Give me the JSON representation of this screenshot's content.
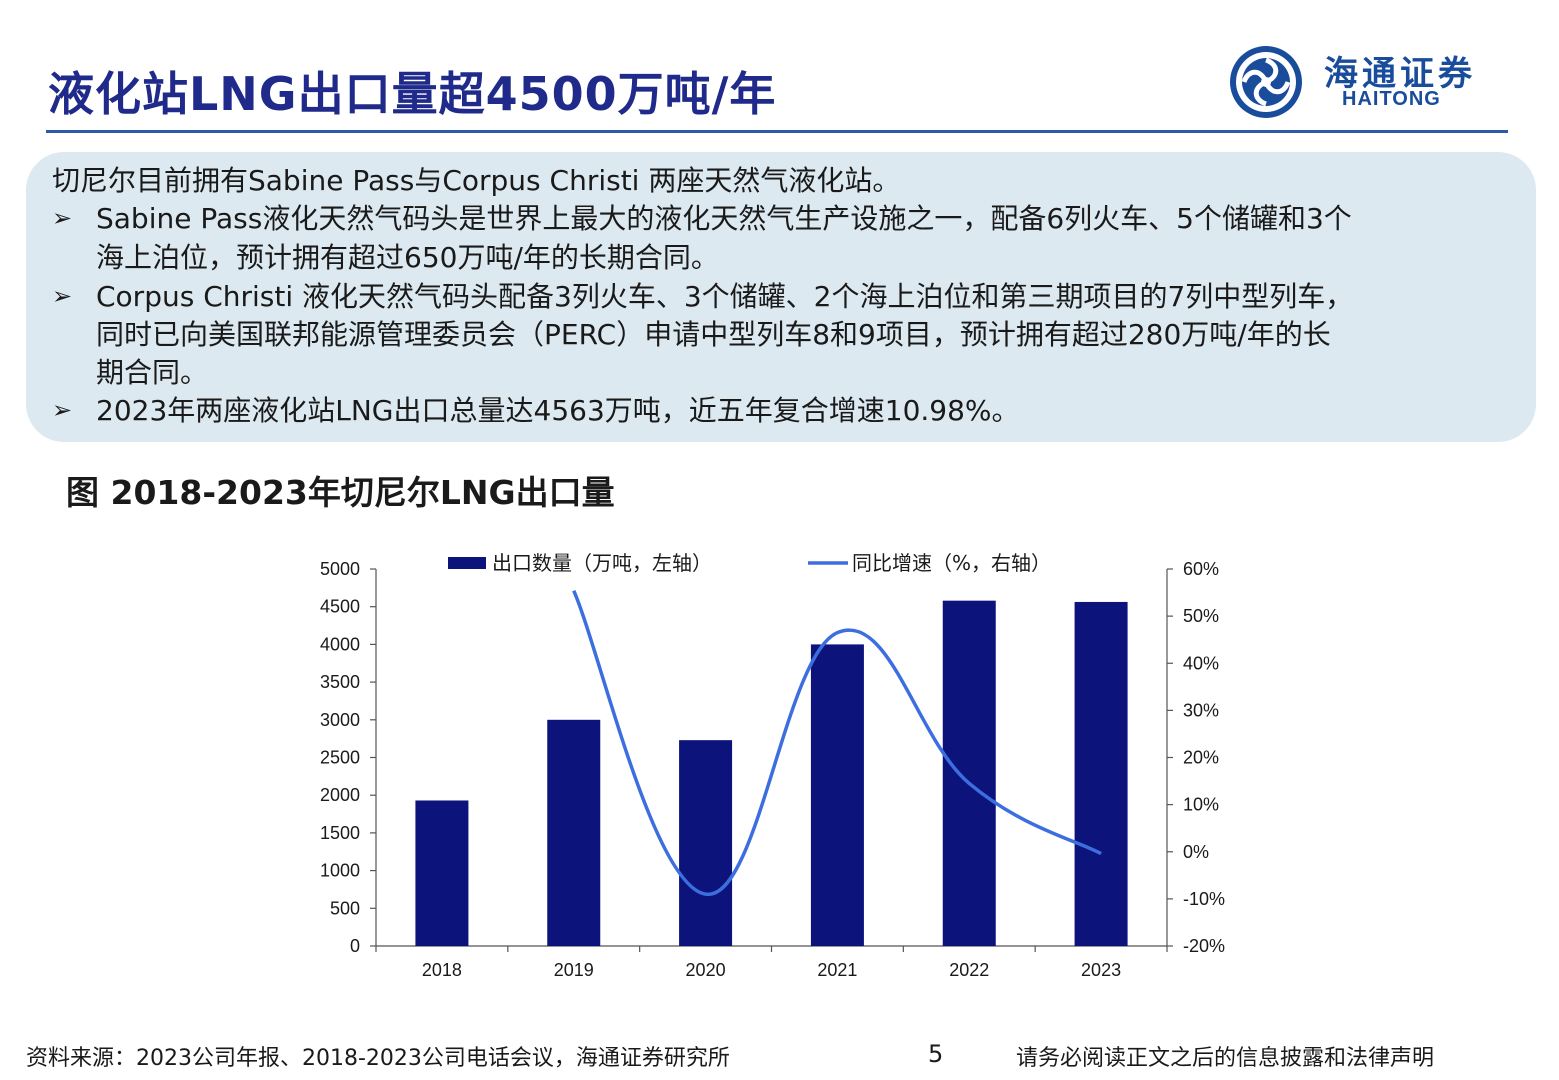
{
  "header": {
    "title": "液化站LNG出口量超4500万吨/年",
    "logo_cn": "海通证券",
    "logo_en": "HAITONG"
  },
  "summary": {
    "intro": "切尼尔目前拥有Sabine Pass与Corpus Christi 两座天然气液化站。",
    "bullet_symbol": "➢",
    "bullets": [
      {
        "line1": "Sabine Pass液化天然气码头是世界上最大的液化天然气生产设施之一，配备6列火车、5个储罐和3个",
        "line2": "海上泊位，预计拥有超过650万吨/年的长期合同。"
      },
      {
        "line1": "Corpus Christi 液化天然气码头配备3列火车、3个储罐、2个海上泊位和第三期项目的7列中型列车，",
        "line2": "同时已向美国联邦能源管理委员会（PERC）申请中型列车8和9项目，预计拥有超过280万吨/年的长",
        "line3": "期合同。"
      },
      {
        "line1": "2023年两座液化站LNG出口总量达4563万吨，近五年复合增速10.98%。"
      }
    ]
  },
  "figure": {
    "title": "图 2018-2023年切尼尔LNG出口量"
  },
  "chart_data": {
    "type": "bar",
    "categories": [
      "2018",
      "2019",
      "2020",
      "2021",
      "2022",
      "2023"
    ],
    "series": [
      {
        "name": "出口数量（万吨，左轴）",
        "type": "bar",
        "axis": "left",
        "color": "#0c137a",
        "values": [
          1930,
          3000,
          2730,
          4000,
          4580,
          4563
        ]
      },
      {
        "name": "同比增速（%，右轴）",
        "type": "line",
        "axis": "right",
        "color": "#3d6ee0",
        "values": [
          null,
          55.4,
          -9.0,
          46.5,
          14.5,
          -0.4
        ]
      }
    ],
    "y_left": {
      "min": 0,
      "max": 5000,
      "step": 500,
      "ticks": [
        "0",
        "500",
        "1000",
        "1500",
        "2000",
        "2500",
        "3000",
        "3500",
        "4000",
        "4500",
        "5000"
      ]
    },
    "y_right": {
      "min": -20,
      "max": 60,
      "step": 10,
      "ticks": [
        "-20%",
        "-10%",
        "0%",
        "10%",
        "20%",
        "30%",
        "40%",
        "50%",
        "60%"
      ]
    },
    "legend_position": "top",
    "grid": false
  },
  "footer": {
    "source": "资料来源：2023公司年报、2018-2023公司电话会议，海通证券研究所",
    "page": "5",
    "disclaimer": "请务必阅读正文之后的信息披露和法律声明"
  }
}
